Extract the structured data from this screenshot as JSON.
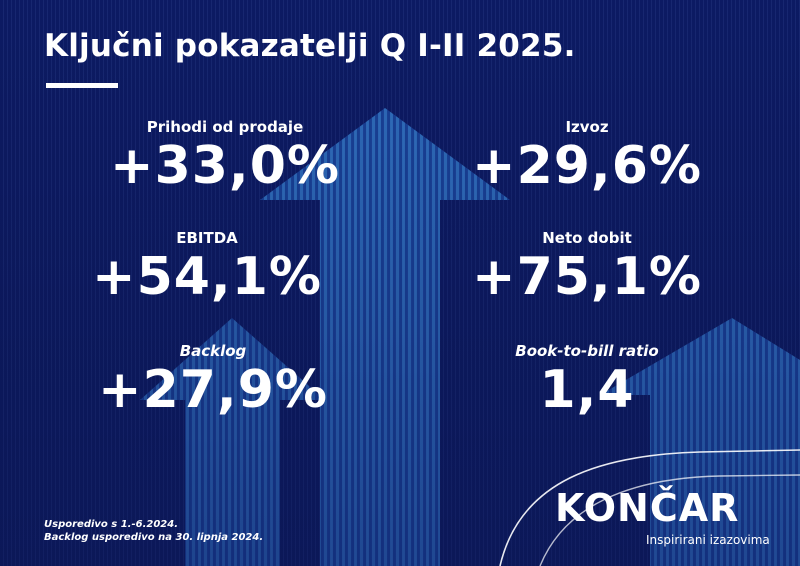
{
  "title": "Ključni pokazatelji Q I-II 2025.",
  "metrics": [
    {
      "label": "Prihodi od prodaje",
      "value": "+33,0%"
    },
    {
      "label": "Izvoz",
      "value": "+29,6%"
    },
    {
      "label": "EBITDA",
      "value": "+54,1%"
    },
    {
      "label": "Neto dobit",
      "value": "+75,1%"
    },
    {
      "label": "Backlog",
      "value": "+27,9%"
    },
    {
      "label": "Book-to-bill ratio",
      "value": "1,4"
    }
  ],
  "footnote": {
    "line1": "Usporedivo s 1.-6.2024.",
    "line2": "Backlog usporedivo na 30. lipnja 2024."
  },
  "brand": {
    "name": "KONČAR",
    "tagline": "Inspirirani izazovima"
  },
  "colors": {
    "background": "#0c1a63",
    "arrow": "#2f7fd0",
    "text": "#ffffff"
  }
}
